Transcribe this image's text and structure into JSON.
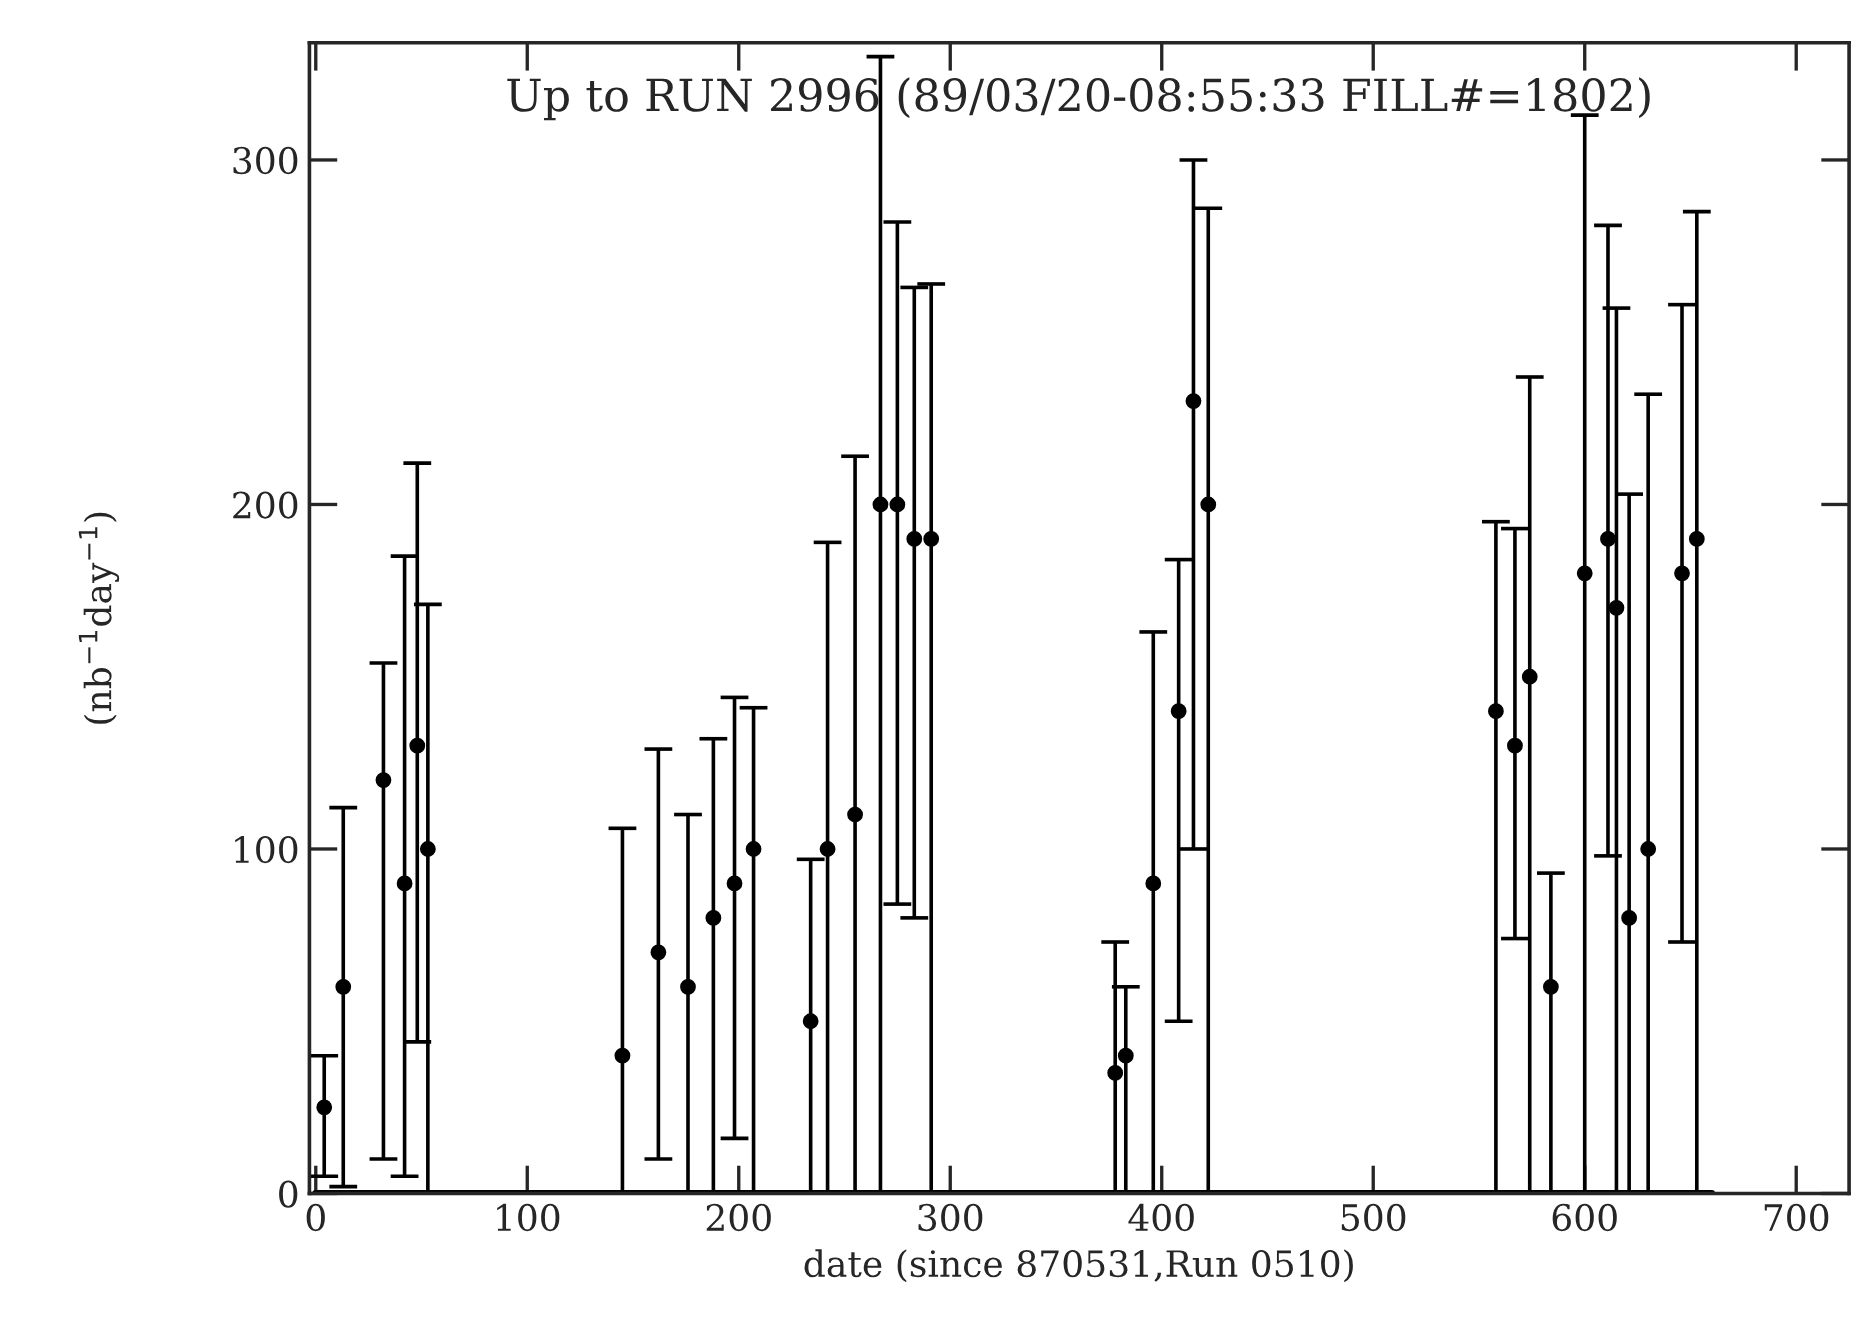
{
  "chart_data": {
    "type": "scatter",
    "title": "Up to RUN 2996 (89/03/20-08:55:33 FILL#=1802)",
    "xlabel": "date (since 870531,Run 0510)",
    "ylabel": "(nb$^{−1}$day$^{−1}$)",
    "xlim": [
      -3,
      725
    ],
    "xticks": [
      0,
      100,
      200,
      300,
      400,
      500,
      600,
      700
    ],
    "ylim": [
      0,
      334
    ],
    "yticks": [
      0,
      100,
      200,
      300
    ],
    "grid": false,
    "legend": false,
    "series": [
      {
        "type": "line",
        "color": "#000000",
        "x": [
          0,
          660
        ],
        "values": [
          0,
          0
        ]
      },
      {
        "color": "#000000",
        "marker": "circle",
        "x": [
          4,
          13,
          32,
          42,
          48,
          53,
          145,
          162,
          176,
          188,
          198,
          207,
          234,
          242,
          255,
          267,
          275,
          283,
          291,
          378,
          383,
          396,
          408,
          415,
          422,
          558,
          567,
          574,
          584,
          600,
          611,
          615,
          621,
          630,
          646,
          653
        ],
        "values": [
          25,
          60,
          120,
          90,
          130,
          100,
          40,
          70,
          60,
          80,
          90,
          100,
          50,
          100,
          110,
          200,
          200,
          190,
          190,
          35,
          40,
          90,
          140,
          230,
          200,
          140,
          130,
          150,
          60,
          180,
          190,
          170,
          80,
          100,
          180,
          190
        ],
        "errors": [
          [
            5,
            40
          ],
          [
            2,
            112
          ],
          [
            10,
            154
          ],
          [
            5,
            185
          ],
          [
            44,
            212
          ],
          [
            0,
            171
          ],
          [
            0,
            106
          ],
          [
            10,
            129
          ],
          [
            0,
            110
          ],
          [
            0,
            132
          ],
          [
            16,
            144
          ],
          [
            0,
            141
          ],
          [
            0,
            97
          ],
          [
            0,
            189
          ],
          [
            0,
            214
          ],
          [
            0,
            330
          ],
          [
            84,
            282
          ],
          [
            80,
            263
          ],
          [
            0,
            264
          ],
          [
            0,
            73
          ],
          [
            0,
            60
          ],
          [
            0,
            163
          ],
          [
            50,
            184
          ],
          [
            100,
            300
          ],
          [
            0,
            286
          ],
          [
            0,
            195
          ],
          [
            74,
            193
          ],
          [
            0,
            237
          ],
          [
            0,
            93
          ],
          [
            0,
            313
          ],
          [
            98,
            281
          ],
          [
            0,
            257
          ],
          [
            0,
            203
          ],
          [
            0,
            232
          ],
          [
            73,
            258
          ],
          [
            0,
            285
          ]
        ]
      }
    ]
  }
}
